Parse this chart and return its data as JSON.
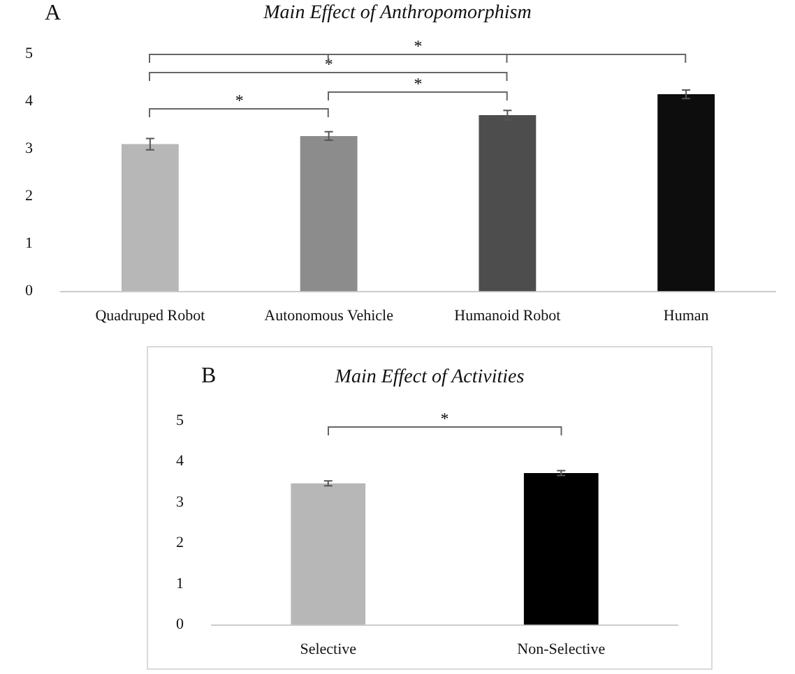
{
  "chart_data": [
    {
      "type": "bar",
      "title": "Main Effect of Anthropomorphism",
      "categories": [
        "Quadruped Robot",
        "Autonomous Vehicle",
        "Humanoid Robot",
        "Human"
      ],
      "values": [
        3.1,
        3.27,
        3.71,
        4.15
      ],
      "colors": [
        "#b7b7b7",
        "#8c8c8c",
        "#4d4d4d",
        "#0d0d0d"
      ],
      "errors": [
        0.12,
        0.09,
        0.1,
        0.09
      ],
      "ylim": [
        0,
        5
      ],
      "yticks": [
        0,
        1,
        2,
        3,
        4,
        5
      ],
      "annotations": [
        "A",
        "*",
        "*",
        "*",
        "*"
      ]
    },
    {
      "type": "bar",
      "title": "Main Effect of Activities",
      "categories": [
        "Selective",
        "Non-Selective"
      ],
      "values": [
        3.47,
        3.72
      ],
      "colors": [
        "#b7b7b7",
        "#000000"
      ],
      "errors": [
        0.06,
        0.06
      ],
      "ylim": [
        0,
        5
      ],
      "yticks": [
        0,
        1,
        2,
        3,
        4,
        5
      ],
      "annotations": [
        "B",
        "*"
      ]
    }
  ]
}
